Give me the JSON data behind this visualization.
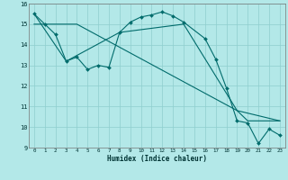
{
  "title": "",
  "xlabel": "Humidex (Indice chaleur)",
  "background_color": "#b3e8e8",
  "grid_color": "#8ecece",
  "line_color": "#006b6b",
  "xlim": [
    -0.5,
    23.5
  ],
  "ylim": [
    9,
    16
  ],
  "xticks": [
    0,
    1,
    2,
    3,
    4,
    5,
    6,
    7,
    8,
    9,
    10,
    11,
    12,
    13,
    14,
    15,
    16,
    17,
    18,
    19,
    20,
    21,
    22,
    23
  ],
  "yticks": [
    9,
    10,
    11,
    12,
    13,
    14,
    15,
    16
  ],
  "series": [
    {
      "x": [
        0,
        1,
        2,
        3,
        4,
        5,
        6,
        7,
        8,
        9,
        10,
        11,
        12,
        13,
        14,
        16,
        17,
        18,
        19,
        20,
        21,
        22,
        23
      ],
      "y": [
        15.5,
        15.0,
        14.5,
        13.2,
        13.4,
        12.8,
        13.0,
        12.9,
        14.6,
        15.1,
        15.35,
        15.45,
        15.6,
        15.4,
        15.1,
        14.3,
        13.3,
        11.9,
        10.3,
        10.2,
        9.2,
        9.9,
        9.6
      ],
      "marker": "D",
      "markersize": 2.0,
      "linewidth": 0.8
    },
    {
      "x": [
        0,
        1,
        4,
        19,
        20,
        23
      ],
      "y": [
        15.0,
        15.0,
        15.0,
        10.8,
        10.3,
        10.3
      ],
      "marker": null,
      "markersize": 0,
      "linewidth": 0.8
    },
    {
      "x": [
        0,
        3,
        8,
        14,
        19,
        23
      ],
      "y": [
        15.5,
        13.2,
        14.6,
        15.0,
        10.8,
        10.3
      ],
      "marker": null,
      "markersize": 0,
      "linewidth": 0.8
    }
  ]
}
